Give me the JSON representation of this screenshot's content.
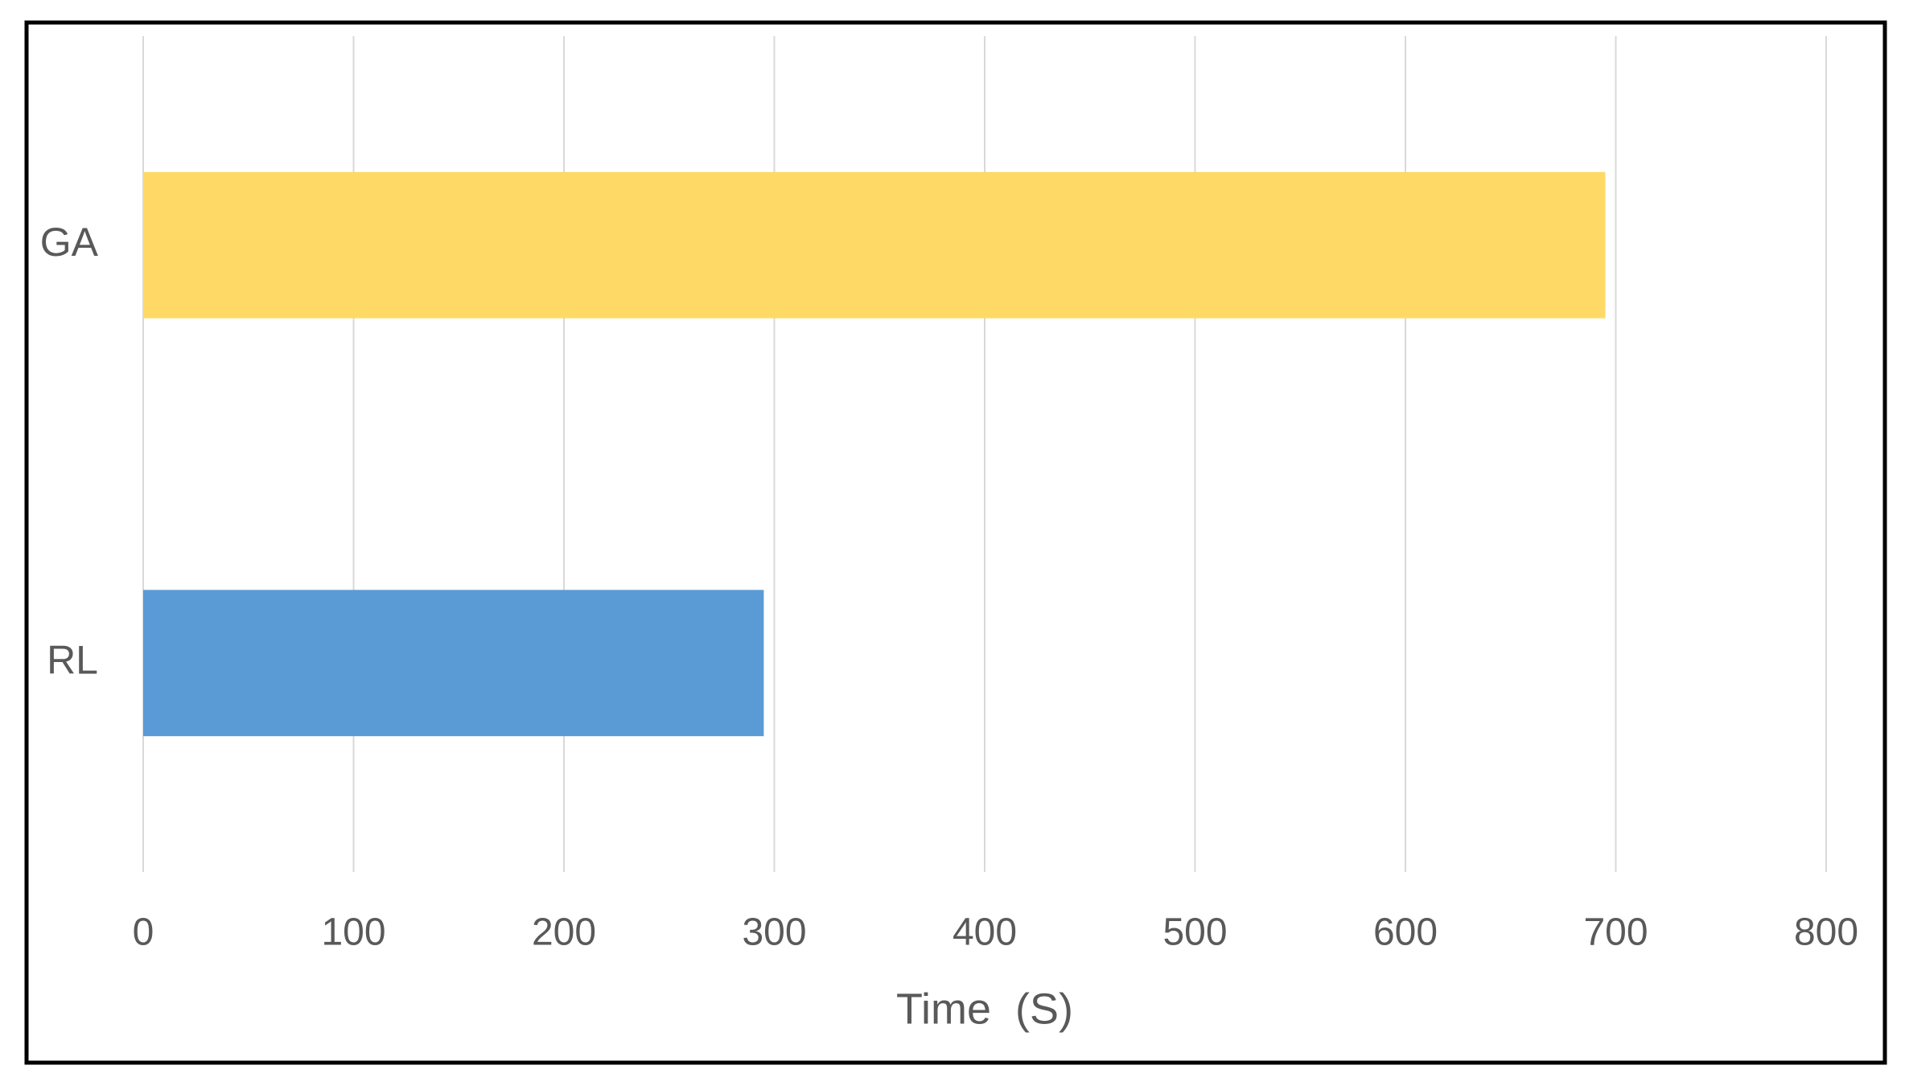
{
  "chart_data": {
    "type": "bar",
    "orientation": "horizontal",
    "categories": [
      "GA",
      "RL"
    ],
    "values": [
      695,
      295
    ],
    "colors": [
      "#ffd966",
      "#5b9bd5"
    ],
    "x_label": "Time  (S)",
    "xlim": [
      0,
      800
    ],
    "xticks": [
      0,
      100,
      200,
      300,
      400,
      500,
      600,
      700,
      800
    ],
    "grid": true
  }
}
